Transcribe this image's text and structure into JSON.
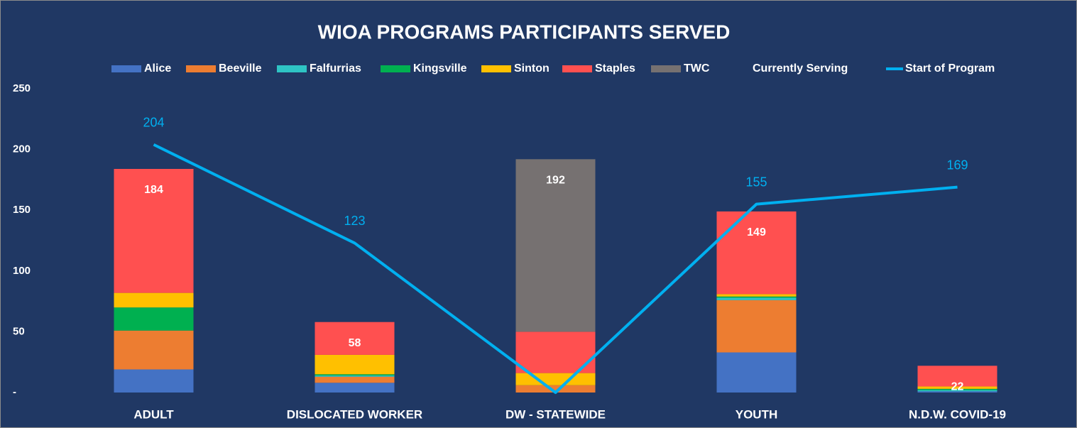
{
  "chart_data": {
    "type": "stacked_bar_line",
    "title": "WIOA PROGRAMS PARTICIPANTS SERVED",
    "categories": [
      "ADULT",
      "DISLOCATED WORKER",
      "DW - STATEWIDE",
      "YOUTH",
      "N.D.W. COVID-19"
    ],
    "series": [
      {
        "name": "Alice",
        "color": "#4472c4",
        "type": "bar",
        "values": [
          19,
          8,
          0,
          33,
          1
        ]
      },
      {
        "name": "Beeville",
        "color": "#ed7d31",
        "type": "bar",
        "values": [
          32,
          5,
          6,
          43,
          0
        ]
      },
      {
        "name": "Falfurrias",
        "color": "#2ec4c4",
        "type": "bar",
        "values": [
          0,
          1,
          0,
          2,
          1
        ]
      },
      {
        "name": "Kingsville",
        "color": "#00b050",
        "type": "bar",
        "values": [
          19,
          1,
          0,
          1,
          1
        ]
      },
      {
        "name": "Sinton",
        "color": "#ffc000",
        "type": "bar",
        "values": [
          12,
          16,
          10,
          2,
          2
        ]
      },
      {
        "name": "Staples",
        "color": "#ff5050",
        "type": "bar",
        "values": [
          102,
          27,
          34,
          68,
          17
        ]
      },
      {
        "name": "TWC",
        "color": "#767171",
        "type": "bar",
        "values": [
          0,
          0,
          142,
          0,
          0
        ]
      },
      {
        "name": "Currently Serving",
        "color": "#ffffff",
        "type": "label",
        "values": [
          184,
          58,
          192,
          149,
          22
        ]
      },
      {
        "name": "Start of Program",
        "color": "#00b0f0",
        "type": "line",
        "values": [
          204,
          123,
          0,
          155,
          169
        ],
        "value_labels": [
          "204",
          "123",
          null,
          "155",
          "169"
        ]
      }
    ],
    "ylim": [
      0,
      250
    ],
    "yticks": [
      {
        "value": 0,
        "label": "-"
      },
      50,
      100,
      150,
      200,
      250
    ],
    "grid": false
  }
}
